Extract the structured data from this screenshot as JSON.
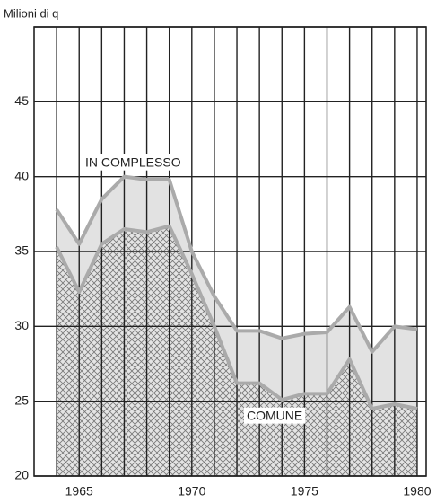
{
  "chart_data": {
    "type": "area",
    "ylabel": "Milioni di q",
    "x": [
      1964,
      1965,
      1966,
      1967,
      1968,
      1969,
      1970,
      1971,
      1972,
      1973,
      1974,
      1975,
      1976,
      1977,
      1978,
      1979,
      1980
    ],
    "series": [
      {
        "name": "IN COMPLESSO",
        "color": "#aaaaaa",
        "values": [
          37.8,
          35.5,
          38.5,
          40,
          39.8,
          39.8,
          35,
          32,
          29.7,
          29.7,
          29.2,
          29.5,
          29.6,
          31.3,
          28.3,
          30,
          29.8
        ]
      },
      {
        "name": "COMUNE",
        "color": "#aaaaaa",
        "values": [
          35.3,
          32.3,
          35.5,
          36.5,
          36.3,
          36.7,
          33.5,
          30,
          26.2,
          26.2,
          25.1,
          25.5,
          25.5,
          27.8,
          24.5,
          24.8,
          24.5
        ]
      }
    ],
    "xlim": [
      1963,
      1980.4
    ],
    "xticks": [
      1965,
      1970,
      1975,
      1980
    ],
    "x_grid": [
      1964,
      1965,
      1966,
      1967,
      1968,
      1969,
      1970,
      1971,
      1972,
      1973,
      1974,
      1975,
      1976,
      1977,
      1978,
      1979,
      1980
    ],
    "ylim": [
      20,
      50
    ],
    "yticks": [
      20,
      25,
      30,
      35,
      40,
      45,
      50
    ],
    "grid": true
  }
}
